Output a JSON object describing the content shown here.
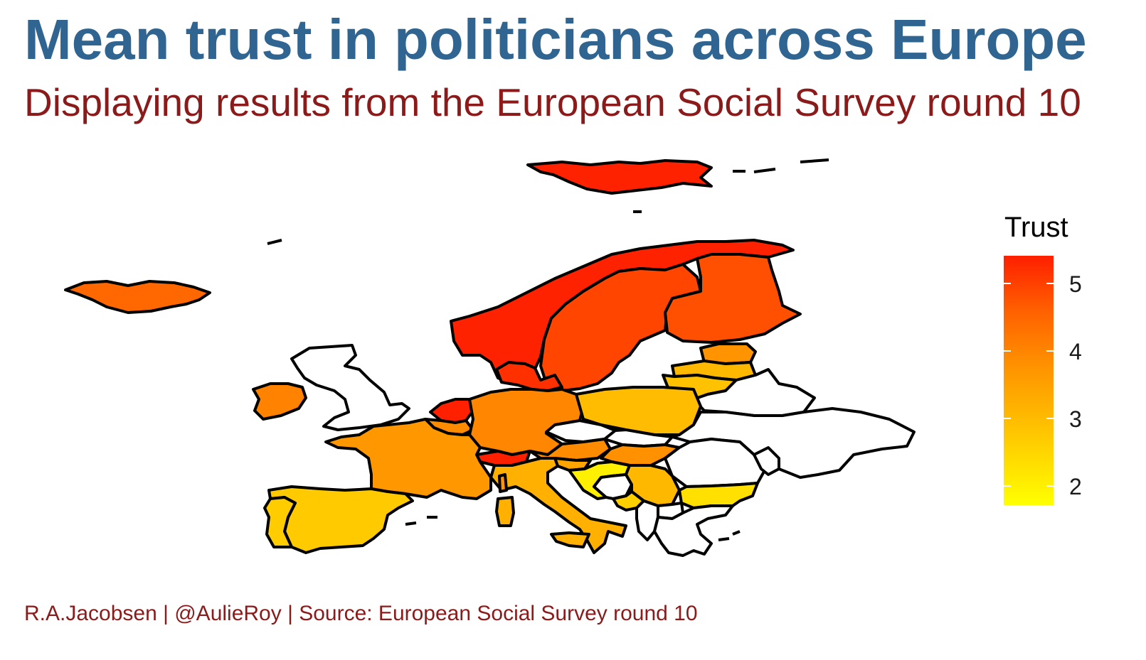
{
  "title": "Mean trust in politicians across Europe",
  "subtitle": "Displaying results from the European Social Survey round 10",
  "caption": "R.A.Jacobsen | @AulieRoy | Source: European Social Survey round 10",
  "map_data": {
    "type": "choropleth",
    "variable": "Trust",
    "legend": {
      "title": "Trust",
      "ticks": [
        "5",
        "4",
        "3",
        "2"
      ],
      "range": [
        1.7,
        5.4
      ],
      "colors": [
        "#ffff00",
        "#ffc400",
        "#ff9400",
        "#ff6000",
        "#ff1f00"
      ]
    },
    "regions": [
      {
        "name": "Norway",
        "value": 5.2,
        "color": "#ff2200"
      },
      {
        "name": "Netherlands",
        "value": 5.2,
        "color": "#ff2000"
      },
      {
        "name": "Switzerland",
        "value": 5.2,
        "color": "#ff2000"
      },
      {
        "name": "Denmark",
        "value": 5.0,
        "color": "#ff3000"
      },
      {
        "name": "Sweden",
        "value": 4.8,
        "color": "#ff4500"
      },
      {
        "name": "Finland",
        "value": 4.7,
        "color": "#ff4f00"
      },
      {
        "name": "Iceland",
        "value": 4.4,
        "color": "#ff6800"
      },
      {
        "name": "Ireland",
        "value": 3.9,
        "color": "#ff8200"
      },
      {
        "name": "Germany",
        "value": 3.8,
        "color": "#ff8600"
      },
      {
        "name": "Belgium",
        "value": 3.7,
        "color": "#ff8c00"
      },
      {
        "name": "Austria",
        "value": 3.7,
        "color": "#ff8c00"
      },
      {
        "name": "Hungary",
        "value": 3.6,
        "color": "#ff9000"
      },
      {
        "name": "Estonia",
        "value": 3.6,
        "color": "#ff9400"
      },
      {
        "name": "France",
        "value": 3.5,
        "color": "#ff9800"
      },
      {
        "name": "Slovenia",
        "value": 3.3,
        "color": "#ffa500"
      },
      {
        "name": "Italy",
        "value": 3.0,
        "color": "#ffb000"
      },
      {
        "name": "Latvia",
        "value": 2.9,
        "color": "#ffb800"
      },
      {
        "name": "Serbia",
        "value": 2.9,
        "color": "#ffb800"
      },
      {
        "name": "Poland",
        "value": 2.8,
        "color": "#ffbc00"
      },
      {
        "name": "Lithuania",
        "value": 2.7,
        "color": "#ffc200"
      },
      {
        "name": "Spain",
        "value": 2.6,
        "color": "#ffca00"
      },
      {
        "name": "Portugal",
        "value": 2.6,
        "color": "#ffcc00"
      },
      {
        "name": "Montenegro",
        "value": 2.5,
        "color": "#ffd000"
      },
      {
        "name": "Bulgaria",
        "value": 2.2,
        "color": "#ffe000"
      },
      {
        "name": "Croatia",
        "value": 1.9,
        "color": "#ffef00"
      },
      {
        "name": "United Kingdom",
        "value": null,
        "color": "#ffffff"
      },
      {
        "name": "Czechia",
        "value": null,
        "color": "#ffffff"
      },
      {
        "name": "Slovakia",
        "value": null,
        "color": "#ffffff"
      },
      {
        "name": "Belarus",
        "value": null,
        "color": "#ffffff"
      },
      {
        "name": "Ukraine",
        "value": null,
        "color": "#ffffff"
      },
      {
        "name": "Romania",
        "value": null,
        "color": "#ffffff"
      },
      {
        "name": "Moldova",
        "value": null,
        "color": "#ffffff"
      },
      {
        "name": "Bosnia and Herzegovina",
        "value": null,
        "color": "#ffffff"
      },
      {
        "name": "Albania",
        "value": null,
        "color": "#ffffff"
      },
      {
        "name": "North Macedonia",
        "value": null,
        "color": "#ffffff"
      },
      {
        "name": "Greece",
        "value": null,
        "color": "#ffffff"
      }
    ]
  }
}
